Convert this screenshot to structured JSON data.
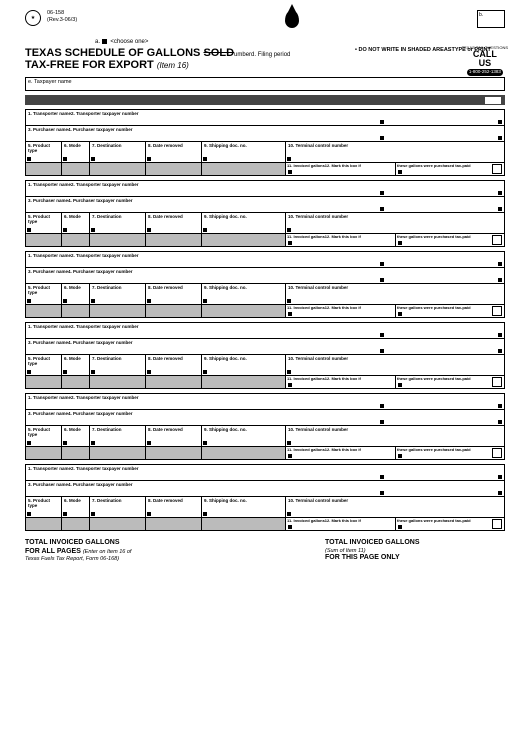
{
  "header": {
    "form_number": "06-158",
    "revision": "(Rev.3-06/3)",
    "a_label": "a.",
    "choose_one": "<choose one>",
    "b_label": "b.",
    "title_line1_a": "TEXAS SCHEDULE OF GALLONS ",
    "title_line1_sold": "SOLD",
    "title_line1_tail": "umberd. Filing period",
    "title_line2": "TAX-FREE FOR EXPORT",
    "title_item": "(Item 16)",
    "do_not_write": "DO NOT WRITE IN SHADED AREASTYPE or PRINT",
    "call_pre": "TEXAS TAX QUESTIONS",
    "call": "CALL",
    "us": "US",
    "phone": "1-800-252-1383",
    "taxpayer_label": "e. Taxpayer name"
  },
  "row_labels": {
    "r1": "1. Transporter name2. Transporter taxpayer number",
    "r2": "3. Purchaser name4. Purchaser taxpayer number",
    "r3": "5. Product type6. Mode7. Destination8. Date removed9. Shipping doc. no.10. Terminal control number",
    "r4a": "11. Invoiced gallons12. Mark this box if",
    "r4b": "these gallons were purchased tax-paid"
  },
  "totals": {
    "left1": "TOTAL INVOICED GALLONS",
    "left2": "FOR ALL PAGES",
    "left3": "(Enter on Item 16 of",
    "left4": "Texas Fuels Tax Report, Form 06-168)",
    "right1": "TOTAL INVOICED GALLONS",
    "right2": "(Sum of Item 11)",
    "right3": "FOR THIS PAGE ONLY"
  }
}
